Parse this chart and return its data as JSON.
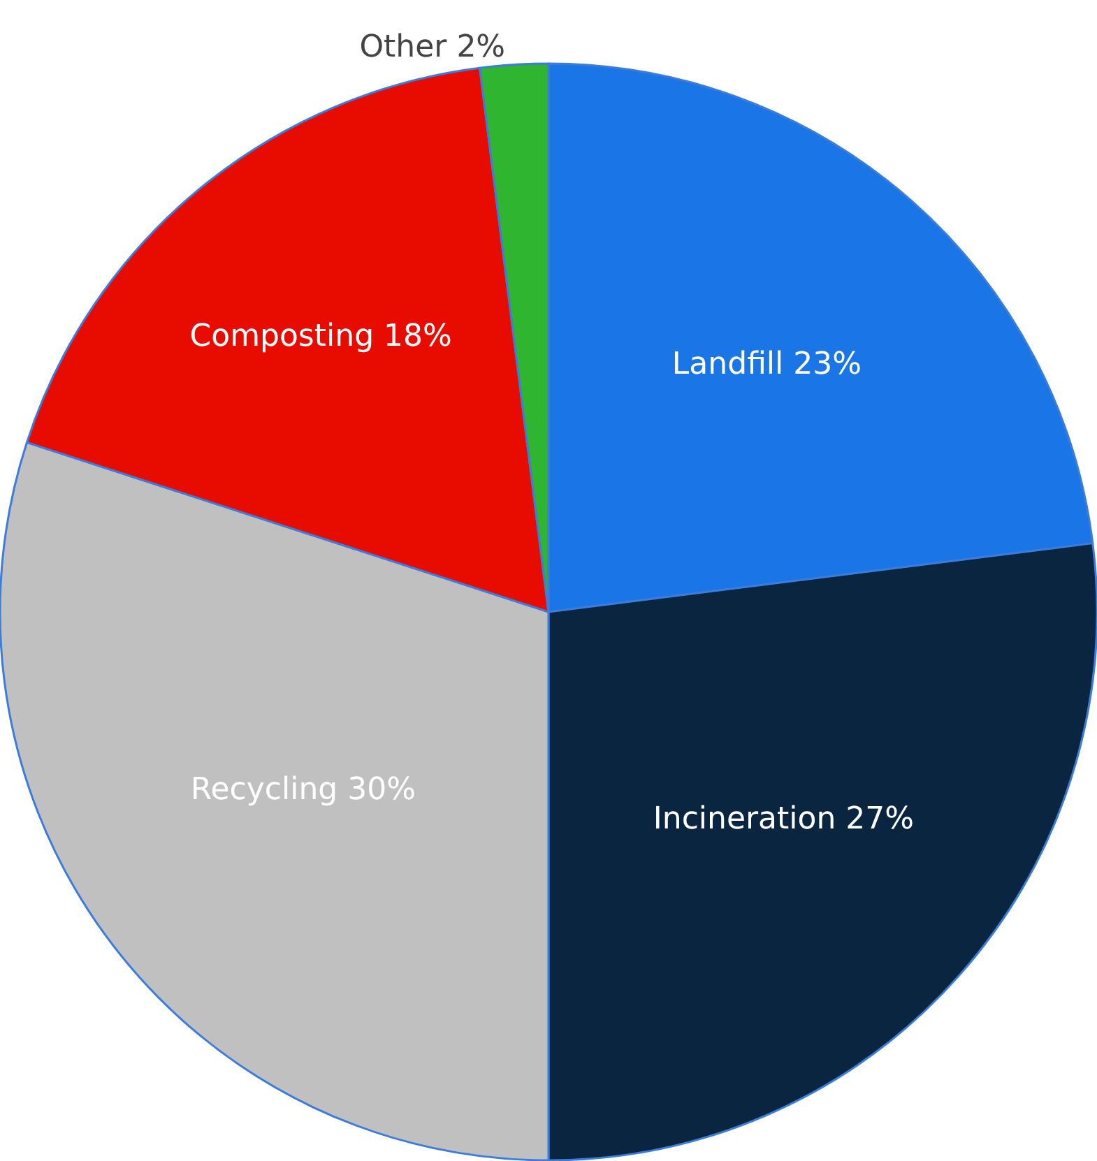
{
  "chart_data": {
    "type": "pie",
    "categories": [
      "Landfill",
      "Incineration",
      "Recycling",
      "Composting",
      "Other"
    ],
    "values": [
      23,
      27,
      30,
      18,
      2
    ],
    "value_labels": [
      "23%",
      "27%",
      "30%",
      "18%",
      "2%"
    ],
    "colors": [
      "#1a75e6",
      "#0a2540",
      "#c0c0c0",
      "#e80c00",
      "#2fb52f"
    ],
    "legend": false
  }
}
